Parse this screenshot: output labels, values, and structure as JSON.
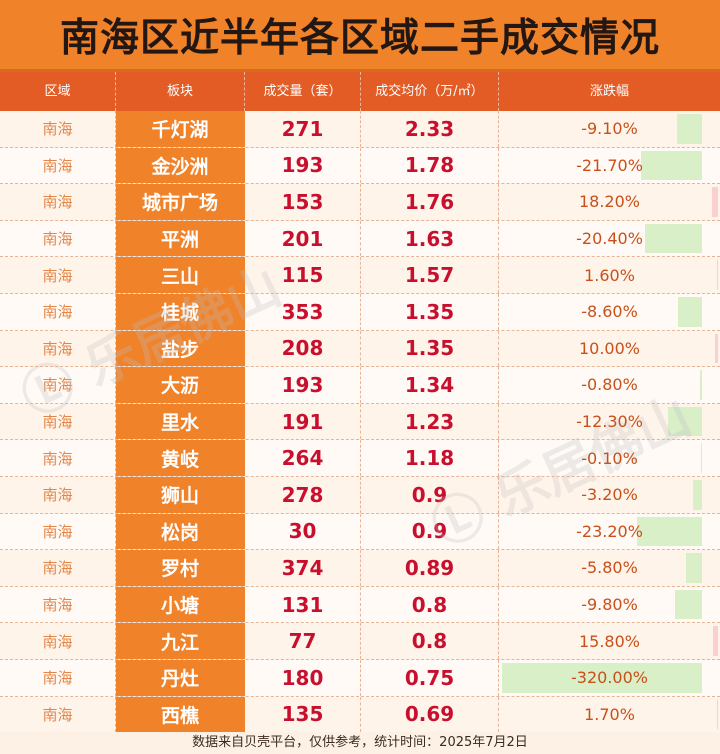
{
  "title": "南海区近半年各区域二手成交情况",
  "columns": [
    "区域",
    "板块",
    "成交量（套）",
    "成交均价（万/㎡）",
    "涨跌幅"
  ],
  "rows": [
    {
      "region": "南海",
      "block": "千灯湖",
      "volume": "271",
      "price": "2.33",
      "change": "-9.10%",
      "change_value": -9.1
    },
    {
      "region": "南海",
      "block": "金沙洲",
      "volume": "193",
      "price": "1.78",
      "change": "-21.70%",
      "change_value": -21.7
    },
    {
      "region": "南海",
      "block": "城市广场",
      "volume": "153",
      "price": "1.76",
      "change": "18.20%",
      "change_value": 18.2
    },
    {
      "region": "南海",
      "block": "平洲",
      "volume": "201",
      "price": "1.63",
      "change": "-20.40%",
      "change_value": -20.4
    },
    {
      "region": "南海",
      "block": "三山",
      "volume": "115",
      "price": "1.57",
      "change": "1.60%",
      "change_value": 1.6
    },
    {
      "region": "南海",
      "block": "桂城",
      "volume": "353",
      "price": "1.35",
      "change": "-8.60%",
      "change_value": -8.6
    },
    {
      "region": "南海",
      "block": "盐步",
      "volume": "208",
      "price": "1.35",
      "change": "10.00%",
      "change_value": 10.0
    },
    {
      "region": "南海",
      "block": "大沥",
      "volume": "193",
      "price": "1.34",
      "change": "-0.80%",
      "change_value": -0.8
    },
    {
      "region": "南海",
      "block": "里水",
      "volume": "191",
      "price": "1.23",
      "change": "-12.30%",
      "change_value": -12.3
    },
    {
      "region": "南海",
      "block": "黄岐",
      "volume": "264",
      "price": "1.18",
      "change": "-0.10%",
      "change_value": -0.1
    },
    {
      "region": "南海",
      "block": "狮山",
      "volume": "278",
      "price": "0.9",
      "change": "-3.20%",
      "change_value": -3.2
    },
    {
      "region": "南海",
      "block": "松岗",
      "volume": "30",
      "price": "0.9",
      "change": "-23.20%",
      "change_value": -23.2
    },
    {
      "region": "南海",
      "block": "罗村",
      "volume": "374",
      "price": "0.89",
      "change": "-5.80%",
      "change_value": -5.8
    },
    {
      "region": "南海",
      "block": "小塘",
      "volume": "131",
      "price": "0.8",
      "change": "-9.80%",
      "change_value": -9.8
    },
    {
      "region": "南海",
      "block": "九江",
      "volume": "77",
      "price": "0.8",
      "change": "15.80%",
      "change_value": 15.8
    },
    {
      "region": "南海",
      "block": "丹灶",
      "volume": "180",
      "price": "0.75",
      "change": "-320.00%",
      "change_value": -320.0
    },
    {
      "region": "南海",
      "block": "西樵",
      "volume": "135",
      "price": "0.69",
      "change": "1.70%",
      "change_value": 1.7
    }
  ],
  "footer": "数据来自贝壳平台，仅供参考，统计时间：2025年7月2日",
  "watermark": "乐居佛山",
  "colors": {
    "title_bg": "#f0822a",
    "header_bg": "#e35c26",
    "block_bg": "#f0822a",
    "value_red": "#c8102e",
    "region_text": "#e2874a",
    "negative_bar": "#d8efc8",
    "positive_bar": "#f9cfcf"
  }
}
